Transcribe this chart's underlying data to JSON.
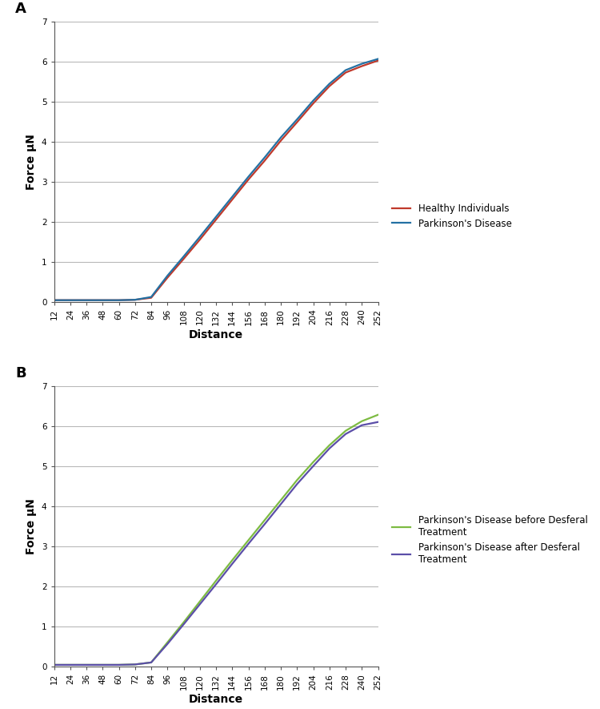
{
  "x_ticks": [
    12,
    24,
    36,
    48,
    60,
    72,
    84,
    96,
    108,
    120,
    132,
    144,
    156,
    168,
    180,
    192,
    204,
    216,
    228,
    240,
    252
  ],
  "x_values": [
    12,
    24,
    36,
    48,
    60,
    72,
    84,
    96,
    108,
    120,
    132,
    144,
    156,
    168,
    180,
    192,
    204,
    216,
    228,
    240,
    252
  ],
  "panel_A": {
    "label": "A",
    "healthy_y": [
      0.04,
      0.04,
      0.04,
      0.04,
      0.04,
      0.05,
      0.1,
      0.6,
      1.07,
      1.55,
      2.05,
      2.55,
      3.05,
      3.52,
      4.02,
      4.48,
      4.95,
      5.38,
      5.72,
      5.88,
      6.02
    ],
    "parkinsons_y": [
      0.04,
      0.04,
      0.04,
      0.04,
      0.04,
      0.05,
      0.12,
      0.65,
      1.13,
      1.62,
      2.12,
      2.62,
      3.12,
      3.6,
      4.1,
      4.55,
      5.02,
      5.44,
      5.78,
      5.94,
      6.06
    ],
    "healthy_color": "#c0392b",
    "parkinsons_color": "#2471a3",
    "healthy_label": "Healthy Individuals",
    "parkinsons_label": "Parkinson's Disease",
    "ylabel": "Force μN",
    "xlabel": "Distance",
    "ylim": [
      0,
      7
    ],
    "yticks": [
      0,
      1,
      2,
      3,
      4,
      5,
      6,
      7
    ]
  },
  "panel_B": {
    "label": "B",
    "before_y": [
      0.04,
      0.04,
      0.04,
      0.04,
      0.04,
      0.05,
      0.1,
      0.6,
      1.1,
      1.62,
      2.14,
      2.65,
      3.15,
      3.65,
      4.15,
      4.65,
      5.1,
      5.52,
      5.88,
      6.12,
      6.28
    ],
    "after_y": [
      0.04,
      0.04,
      0.04,
      0.04,
      0.04,
      0.05,
      0.1,
      0.56,
      1.05,
      1.55,
      2.05,
      2.56,
      3.06,
      3.55,
      4.05,
      4.55,
      5.0,
      5.44,
      5.8,
      6.02,
      6.1
    ],
    "before_color": "#7dbb42",
    "after_color": "#5b4ea8",
    "before_label": "Parkinson's Disease before Desferal\nTreatment",
    "after_label": "Parkinson's Disease after Desferal\nTreatment",
    "ylabel": "Force μN",
    "xlabel": "Distance",
    "ylim": [
      0,
      7
    ],
    "yticks": [
      0,
      1,
      2,
      3,
      4,
      5,
      6,
      7
    ]
  },
  "background_color": "#ffffff",
  "grid_color": "#b8b8b8",
  "tick_fontsize": 7.5,
  "label_fontsize": 10,
  "panel_label_fontsize": 13,
  "legend_fontsize": 8.5,
  "linewidth": 1.6
}
